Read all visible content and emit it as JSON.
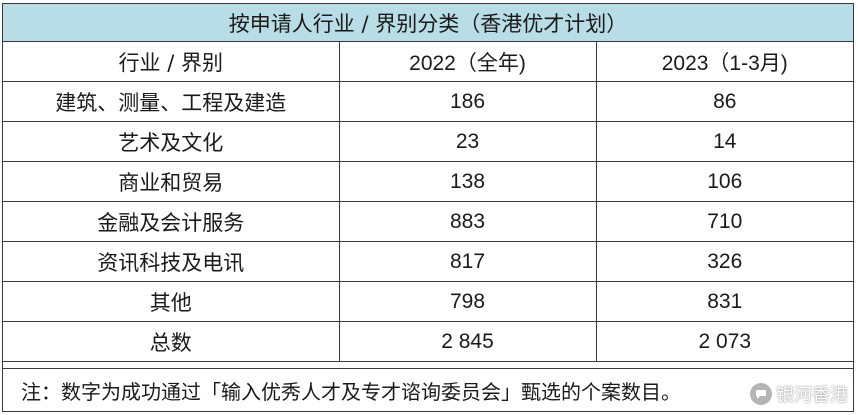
{
  "table": {
    "title": "按申请人行业 / 界别分类（香港优才计划）",
    "headers": [
      "行业 / 界别",
      "2022（全年)",
      "2023（1-3月)"
    ],
    "rows": [
      {
        "category": "建筑、测量、工程及建造",
        "y2022": "186",
        "y2023": "86"
      },
      {
        "category": "艺术及文化",
        "y2022": "23",
        "y2023": "14"
      },
      {
        "category": "商业和贸易",
        "y2022": "138",
        "y2023": "106"
      },
      {
        "category": "金融及会计服务",
        "y2022": "883",
        "y2023": "710"
      },
      {
        "category": "资讯科技及电讯",
        "y2022": "817",
        "y2023": "326"
      },
      {
        "category": "其他",
        "y2022": "798",
        "y2023": "831"
      }
    ],
    "total": {
      "category": "总数",
      "y2022": "2 845",
      "y2023": "2 073"
    },
    "note": "注：数字为成功通过「输入优秀人才及专才谘询委员会」甄选的个案数目。"
  },
  "watermark": {
    "text": "银河香港",
    "icon": "chat-bubble-icon"
  }
}
